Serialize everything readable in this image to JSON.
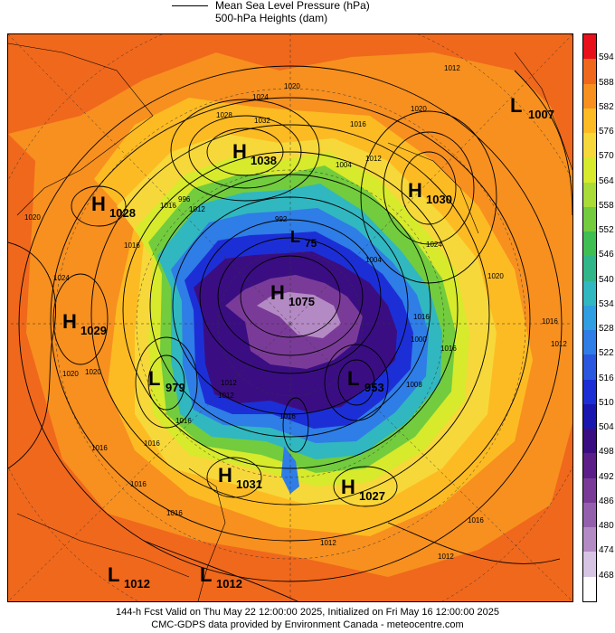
{
  "legend": {
    "line1": "Mean Sea Level Pressure (hPa)",
    "line2": "500-hPa Heights (dam)"
  },
  "colorbar": {
    "labels": [
      "594",
      "588",
      "582",
      "576",
      "570",
      "564",
      "558",
      "552",
      "546",
      "540",
      "534",
      "528",
      "522",
      "516",
      "510",
      "504",
      "498",
      "492",
      "486",
      "480",
      "474",
      "468"
    ],
    "colors": [
      "#e8101a",
      "#f0681c",
      "#f7901f",
      "#fdbb23",
      "#f7d83a",
      "#d7ea2c",
      "#a9dc37",
      "#72cc3d",
      "#3fbe52",
      "#30b688",
      "#31b7c0",
      "#2f9ee2",
      "#2f7de6",
      "#2a57e0",
      "#1c2fd6",
      "#1a17b0",
      "#3a0e82",
      "#5c1e88",
      "#7a3b98",
      "#9460ae",
      "#b48ac4",
      "#d7c4e4",
      "#ffffff"
    ]
  },
  "map_labels": [
    {
      "letter": "H",
      "value": "1038"
    },
    {
      "letter": "H",
      "value": "1030"
    },
    {
      "letter": "H",
      "value": "1028"
    },
    {
      "letter": "H",
      "value": "1029"
    },
    {
      "letter": "H",
      "value": "1075"
    },
    {
      "letter": "L",
      "value": "1007"
    },
    {
      "letter": "L",
      "value": "979"
    },
    {
      "letter": "L",
      "value": "953"
    },
    {
      "letter": "L",
      "value": "75"
    },
    {
      "letter": "H",
      "value": "1031"
    },
    {
      "letter": "H",
      "value": "1027"
    },
    {
      "letter": "L",
      "value": "1012"
    },
    {
      "letter": "L",
      "value": "1012"
    }
  ],
  "contour_labels": [
    "1012",
    "1020",
    "1024",
    "1028",
    "1032",
    "1016",
    "1004",
    "1012",
    "1016",
    "1012",
    "992",
    "996",
    "1016",
    "1024",
    "1020",
    "1020",
    "1016",
    "1012",
    "1016",
    "1020",
    "1024",
    "1016",
    "1012",
    "1016",
    "1020",
    "1004",
    "1000",
    "1008",
    "1016",
    "1012",
    "1016",
    "1016",
    "1020",
    "1016",
    "1012",
    "1016",
    "1012",
    "1016"
  ],
  "footer": {
    "line1": "144-h Fcst Valid on Thu May 22 12:00:00 2025, Initialized on Fri May 16 12:00:00 2025",
    "line2": "CMC-GDPS data provided by Environment Canada - meteocentre.com"
  }
}
